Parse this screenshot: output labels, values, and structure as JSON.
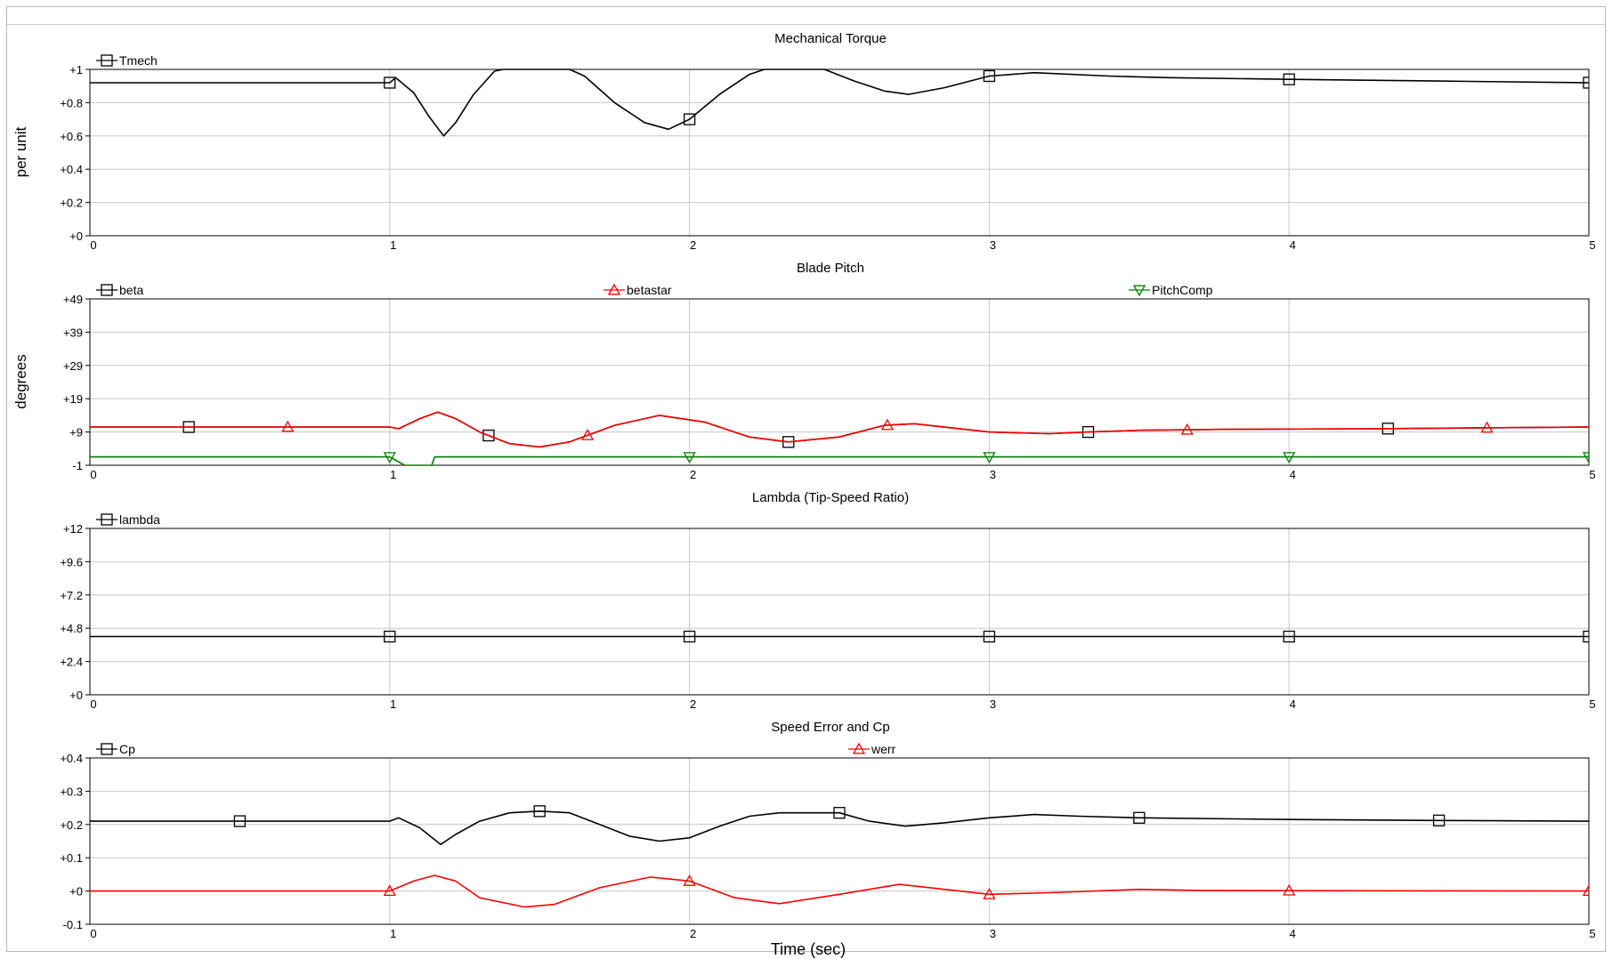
{
  "chart_data": [
    {
      "type": "line",
      "title": "Mechanical Torque",
      "ylabel": "per unit",
      "xlim": [
        0,
        5
      ],
      "ylim": [
        0,
        1
      ],
      "yticks": [
        "+0",
        "+0.2",
        "+0.4",
        "+0.6",
        "+0.8",
        "+1"
      ],
      "ytick_values": [
        0,
        0.2,
        0.4,
        0.6,
        0.8,
        1
      ],
      "xticks": [
        "0",
        "1",
        "2",
        "3",
        "4",
        "5"
      ],
      "grid": true,
      "series": [
        {
          "name": "Tmech",
          "color": "#000000",
          "marker": "square",
          "markers_x": [
            1,
            2,
            3,
            4,
            5
          ],
          "points": [
            [
              0,
              0.92
            ],
            [
              1.0,
              0.92
            ],
            [
              1.02,
              0.95
            ],
            [
              1.08,
              0.86
            ],
            [
              1.13,
              0.72
            ],
            [
              1.18,
              0.6
            ],
            [
              1.22,
              0.68
            ],
            [
              1.28,
              0.85
            ],
            [
              1.35,
              0.99
            ],
            [
              1.38,
              1.0
            ],
            [
              1.6,
              1.0
            ],
            [
              1.65,
              0.96
            ],
            [
              1.75,
              0.8
            ],
            [
              1.85,
              0.68
            ],
            [
              1.93,
              0.64
            ],
            [
              2.0,
              0.7
            ],
            [
              2.1,
              0.85
            ],
            [
              2.2,
              0.97
            ],
            [
              2.25,
              1.0
            ],
            [
              2.45,
              1.0
            ],
            [
              2.55,
              0.93
            ],
            [
              2.65,
              0.87
            ],
            [
              2.73,
              0.85
            ],
            [
              2.85,
              0.89
            ],
            [
              3.0,
              0.96
            ],
            [
              3.15,
              0.98
            ],
            [
              3.4,
              0.96
            ],
            [
              3.6,
              0.95
            ],
            [
              4.0,
              0.94
            ],
            [
              4.5,
              0.93
            ],
            [
              5.0,
              0.92
            ]
          ]
        }
      ]
    },
    {
      "type": "line",
      "title": "Blade Pitch",
      "ylabel": "degrees",
      "xlim": [
        0,
        5
      ],
      "ylim": [
        -1,
        49
      ],
      "yticks": [
        "-1",
        "+9",
        "+19",
        "+29",
        "+39",
        "+49"
      ],
      "ytick_values": [
        -1,
        9,
        19,
        29,
        39,
        49
      ],
      "xticks": [
        "0",
        "1",
        "2",
        "3",
        "4",
        "5"
      ],
      "grid": true,
      "series": [
        {
          "name": "beta",
          "color": "#000000",
          "marker": "square",
          "markers_x": [
            0.33,
            1.33,
            2.33,
            3.33,
            4.33
          ],
          "points": [
            [
              0,
              10.5
            ],
            [
              1.0,
              10.5
            ],
            [
              1.03,
              10
            ],
            [
              1.1,
              13
            ],
            [
              1.16,
              15
            ],
            [
              1.22,
              13
            ],
            [
              1.3,
              9
            ],
            [
              1.4,
              5.5
            ],
            [
              1.5,
              4.5
            ],
            [
              1.6,
              6
            ],
            [
              1.75,
              11
            ],
            [
              1.9,
              14
            ],
            [
              2.05,
              12
            ],
            [
              2.2,
              7.5
            ],
            [
              2.33,
              6
            ],
            [
              2.5,
              7.5
            ],
            [
              2.65,
              11
            ],
            [
              2.75,
              11.5
            ],
            [
              2.9,
              10
            ],
            [
              3.0,
              9
            ],
            [
              3.2,
              8.5
            ],
            [
              3.33,
              9
            ],
            [
              3.5,
              9.5
            ],
            [
              3.8,
              9.8
            ],
            [
              4.3,
              10
            ],
            [
              5.0,
              10.5
            ]
          ]
        },
        {
          "name": "betastar",
          "color": "#ff0000",
          "marker": "triangle-up",
          "markers_x": [
            0.66,
            1.66,
            2.66,
            3.66,
            4.66
          ],
          "points": [
            [
              0,
              10.5
            ],
            [
              1.0,
              10.5
            ],
            [
              1.03,
              10
            ],
            [
              1.1,
              13
            ],
            [
              1.16,
              15
            ],
            [
              1.22,
              13
            ],
            [
              1.3,
              9
            ],
            [
              1.4,
              5.5
            ],
            [
              1.5,
              4.5
            ],
            [
              1.6,
              6
            ],
            [
              1.75,
              11
            ],
            [
              1.9,
              14
            ],
            [
              2.05,
              12
            ],
            [
              2.2,
              7.5
            ],
            [
              2.33,
              6
            ],
            [
              2.5,
              7.5
            ],
            [
              2.65,
              11
            ],
            [
              2.75,
              11.5
            ],
            [
              2.9,
              10
            ],
            [
              3.0,
              9
            ],
            [
              3.2,
              8.5
            ],
            [
              3.33,
              9
            ],
            [
              3.5,
              9.5
            ],
            [
              3.8,
              9.8
            ],
            [
              4.3,
              10
            ],
            [
              5.0,
              10.5
            ]
          ]
        },
        {
          "name": "PitchComp",
          "color": "#008000",
          "marker": "triangle-down",
          "markers_x": [
            1,
            2,
            3,
            4,
            5
          ],
          "points": [
            [
              0,
              1.5
            ],
            [
              1.0,
              1.5
            ],
            [
              1.05,
              -1
            ],
            [
              1.14,
              -1
            ],
            [
              1.15,
              1.5
            ],
            [
              5.0,
              1.5
            ]
          ]
        }
      ]
    },
    {
      "type": "line",
      "title": "Lambda (Tip-Speed Ratio)",
      "ylabel": "",
      "xlim": [
        0,
        5
      ],
      "ylim": [
        0,
        12
      ],
      "yticks": [
        "+0",
        "+2.4",
        "+4.8",
        "+7.2",
        "+9.6",
        "+12"
      ],
      "ytick_values": [
        0,
        2.4,
        4.8,
        7.2,
        9.6,
        12
      ],
      "xticks": [
        "0",
        "1",
        "2",
        "3",
        "4",
        "5"
      ],
      "grid": true,
      "series": [
        {
          "name": "lambda",
          "color": "#000000",
          "marker": "square",
          "markers_x": [
            1,
            2,
            3,
            4,
            5
          ],
          "points": [
            [
              0,
              4.2
            ],
            [
              5.0,
              4.2
            ]
          ]
        }
      ]
    },
    {
      "type": "line",
      "title": "Speed Error and Cp",
      "ylabel": "",
      "xlabel": "Time (sec)",
      "xlim": [
        0,
        5
      ],
      "ylim": [
        -0.1,
        0.4
      ],
      "yticks": [
        "-0.1",
        "+0",
        "+0.1",
        "+0.2",
        "+0.3",
        "+0.4"
      ],
      "ytick_values": [
        -0.1,
        0,
        0.1,
        0.2,
        0.3,
        0.4
      ],
      "xticks": [
        "0",
        "1",
        "2",
        "3",
        "4",
        "5"
      ],
      "grid": true,
      "series": [
        {
          "name": "Cp",
          "color": "#000000",
          "marker": "square",
          "markers_x": [
            0.5,
            1.5,
            2.5,
            3.5,
            4.5
          ],
          "points": [
            [
              0,
              0.21
            ],
            [
              1.0,
              0.21
            ],
            [
              1.03,
              0.22
            ],
            [
              1.1,
              0.19
            ],
            [
              1.17,
              0.14
            ],
            [
              1.22,
              0.17
            ],
            [
              1.3,
              0.21
            ],
            [
              1.4,
              0.235
            ],
            [
              1.5,
              0.24
            ],
            [
              1.6,
              0.235
            ],
            [
              1.7,
              0.2
            ],
            [
              1.8,
              0.165
            ],
            [
              1.9,
              0.15
            ],
            [
              2.0,
              0.16
            ],
            [
              2.1,
              0.195
            ],
            [
              2.2,
              0.225
            ],
            [
              2.3,
              0.235
            ],
            [
              2.5,
              0.235
            ],
            [
              2.6,
              0.21
            ],
            [
              2.72,
              0.195
            ],
            [
              2.85,
              0.205
            ],
            [
              3.0,
              0.22
            ],
            [
              3.15,
              0.23
            ],
            [
              3.3,
              0.225
            ],
            [
              3.5,
              0.22
            ],
            [
              4.0,
              0.215
            ],
            [
              4.5,
              0.212
            ],
            [
              5.0,
              0.21
            ]
          ]
        },
        {
          "name": "werr",
          "color": "#ff0000",
          "marker": "triangle-up",
          "markers_x": [
            1,
            2,
            3,
            4,
            5
          ],
          "points": [
            [
              0,
              0
            ],
            [
              1.0,
              0
            ],
            [
              1.08,
              0.03
            ],
            [
              1.15,
              0.047
            ],
            [
              1.22,
              0.03
            ],
            [
              1.3,
              -0.02
            ],
            [
              1.45,
              -0.048
            ],
            [
              1.55,
              -0.04
            ],
            [
              1.7,
              0.01
            ],
            [
              1.87,
              0.042
            ],
            [
              2.0,
              0.03
            ],
            [
              2.15,
              -0.02
            ],
            [
              2.3,
              -0.038
            ],
            [
              2.5,
              -0.01
            ],
            [
              2.7,
              0.02
            ],
            [
              2.85,
              0.005
            ],
            [
              3.0,
              -0.01
            ],
            [
              3.2,
              -0.005
            ],
            [
              3.5,
              0.005
            ],
            [
              3.7,
              0.002
            ],
            [
              4.0,
              0.001
            ],
            [
              5.0,
              0
            ]
          ]
        }
      ]
    }
  ]
}
